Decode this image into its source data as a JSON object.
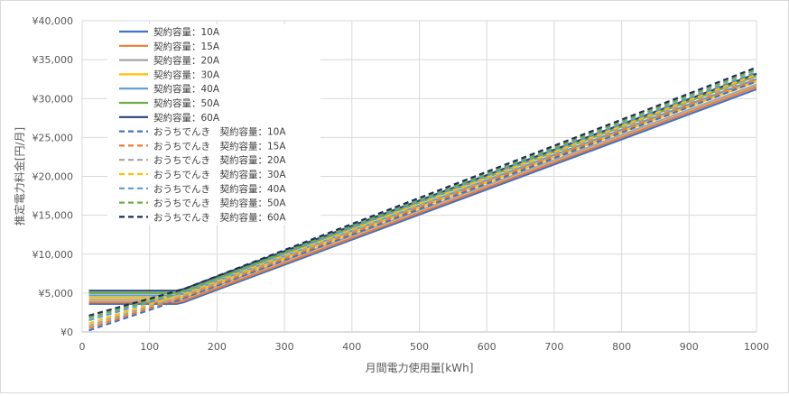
{
  "chart_data": {
    "type": "line",
    "xlabel": "月間電力使用量[kWh]",
    "ylabel": "推定電力料金[円/月]",
    "xlim": [
      0,
      1000
    ],
    "ylim": [
      0,
      40000
    ],
    "x_ticks": [
      "0",
      "100",
      "200",
      "300",
      "400",
      "500",
      "600",
      "700",
      "800",
      "900",
      "1000"
    ],
    "y_ticks": [
      "¥0",
      "¥5,000",
      "¥10,000",
      "¥15,000",
      "¥20,000",
      "¥25,000",
      "¥30,000",
      "¥35,000",
      "¥40,000"
    ],
    "grid": "vertical-and-horizontal",
    "legend_position": "top-left",
    "series": [
      {
        "name": "契約容量：10A",
        "color": "#4472c4",
        "dash": false,
        "x": [
          10,
          140,
          150,
          1000
        ],
        "y": [
          3600,
          3600,
          3800,
          31200
        ]
      },
      {
        "name": "契約容量：15A",
        "color": "#ed7d31",
        "dash": false,
        "x": [
          10,
          140,
          150,
          1000
        ],
        "y": [
          3800,
          3800,
          4000,
          31500
        ]
      },
      {
        "name": "契約容量：20A",
        "color": "#a5a5a5",
        "dash": false,
        "x": [
          10,
          140,
          150,
          1000
        ],
        "y": [
          4100,
          4100,
          4300,
          31800
        ]
      },
      {
        "name": "契約容量：30A",
        "color": "#ffc000",
        "dash": false,
        "x": [
          10,
          140,
          150,
          1000
        ],
        "y": [
          4400,
          4400,
          4600,
          32200
        ]
      },
      {
        "name": "契約容量：40A",
        "color": "#5b9bd5",
        "dash": false,
        "x": [
          10,
          140,
          150,
          1000
        ],
        "y": [
          4700,
          4700,
          4900,
          32500
        ]
      },
      {
        "name": "契約容量：50A",
        "color": "#70ad47",
        "dash": false,
        "x": [
          10,
          140,
          150,
          1000
        ],
        "y": [
          5000,
          5000,
          5200,
          32900
        ]
      },
      {
        "name": "契約容量：60A",
        "color": "#264478",
        "dash": false,
        "x": [
          10,
          140,
          150,
          1000
        ],
        "y": [
          5300,
          5300,
          5500,
          33200
        ]
      },
      {
        "name": "おうちでんき　契約容量：10A",
        "color": "#4472c4",
        "dash": true,
        "x": [
          10,
          150,
          1000
        ],
        "y": [
          200,
          4300,
          32200
        ]
      },
      {
        "name": "おうちでんき　契約容量：15A",
        "color": "#ed7d31",
        "dash": true,
        "x": [
          10,
          150,
          1000
        ],
        "y": [
          500,
          4500,
          32500
        ]
      },
      {
        "name": "おうちでんき　契約容量：20A",
        "color": "#a5a5a5",
        "dash": true,
        "x": [
          10,
          150,
          1000
        ],
        "y": [
          800,
          4700,
          32800
        ]
      },
      {
        "name": "おうちでんき　契約容量：30A",
        "color": "#ffc000",
        "dash": true,
        "x": [
          10,
          150,
          1000
        ],
        "y": [
          1100,
          4900,
          33100
        ]
      },
      {
        "name": "おうちでんき　契約容量：40A",
        "color": "#5b9bd5",
        "dash": true,
        "x": [
          10,
          150,
          1000
        ],
        "y": [
          1500,
          5100,
          33400
        ]
      },
      {
        "name": "おうちでんき　契約容量：50A",
        "color": "#70ad47",
        "dash": true,
        "x": [
          10,
          150,
          1000
        ],
        "y": [
          1800,
          5300,
          33700
        ]
      },
      {
        "name": "おうちでんき　契約容量：60A",
        "color": "#1f2d56",
        "dash": true,
        "x": [
          10,
          150,
          1000
        ],
        "y": [
          2100,
          5500,
          34000
        ]
      }
    ]
  }
}
